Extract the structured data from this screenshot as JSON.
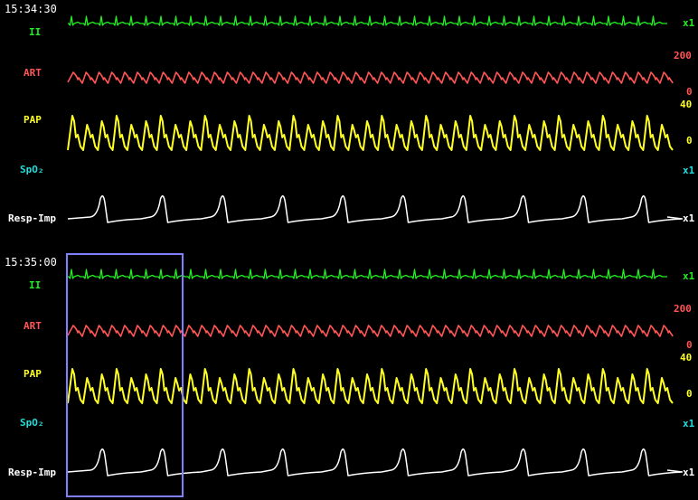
{
  "colors": {
    "ecg": "#22ee22",
    "art": "#ff5555",
    "pap": "#ffff22",
    "spo2": "#22dddd",
    "resp": "#ffffff",
    "selection": "#8080ff"
  },
  "panels": [
    {
      "timestamp": "15:34:30",
      "ecg": {
        "label": "II",
        "scale": "x1"
      },
      "art": {
        "label": "ART",
        "scale_top": "200",
        "scale_bottom": "0"
      },
      "pap": {
        "label": "PAP",
        "scale_top": "40",
        "scale_bottom": "0"
      },
      "spo2": {
        "label": "SpO₂",
        "scale": "x1"
      },
      "resp": {
        "label": "Resp-Imp",
        "scale": "x1"
      }
    },
    {
      "timestamp": "15:35:00",
      "ecg": {
        "label": "II",
        "scale": "x1"
      },
      "art": {
        "label": "ART",
        "scale_top": "200",
        "scale_bottom": "0"
      },
      "pap": {
        "label": "PAP",
        "scale_top": "40",
        "scale_bottom": "0"
      },
      "spo2": {
        "label": "SpO₂",
        "scale": "x1"
      },
      "resp": {
        "label": "Resp-Imp",
        "scale": "x1"
      }
    }
  ]
}
